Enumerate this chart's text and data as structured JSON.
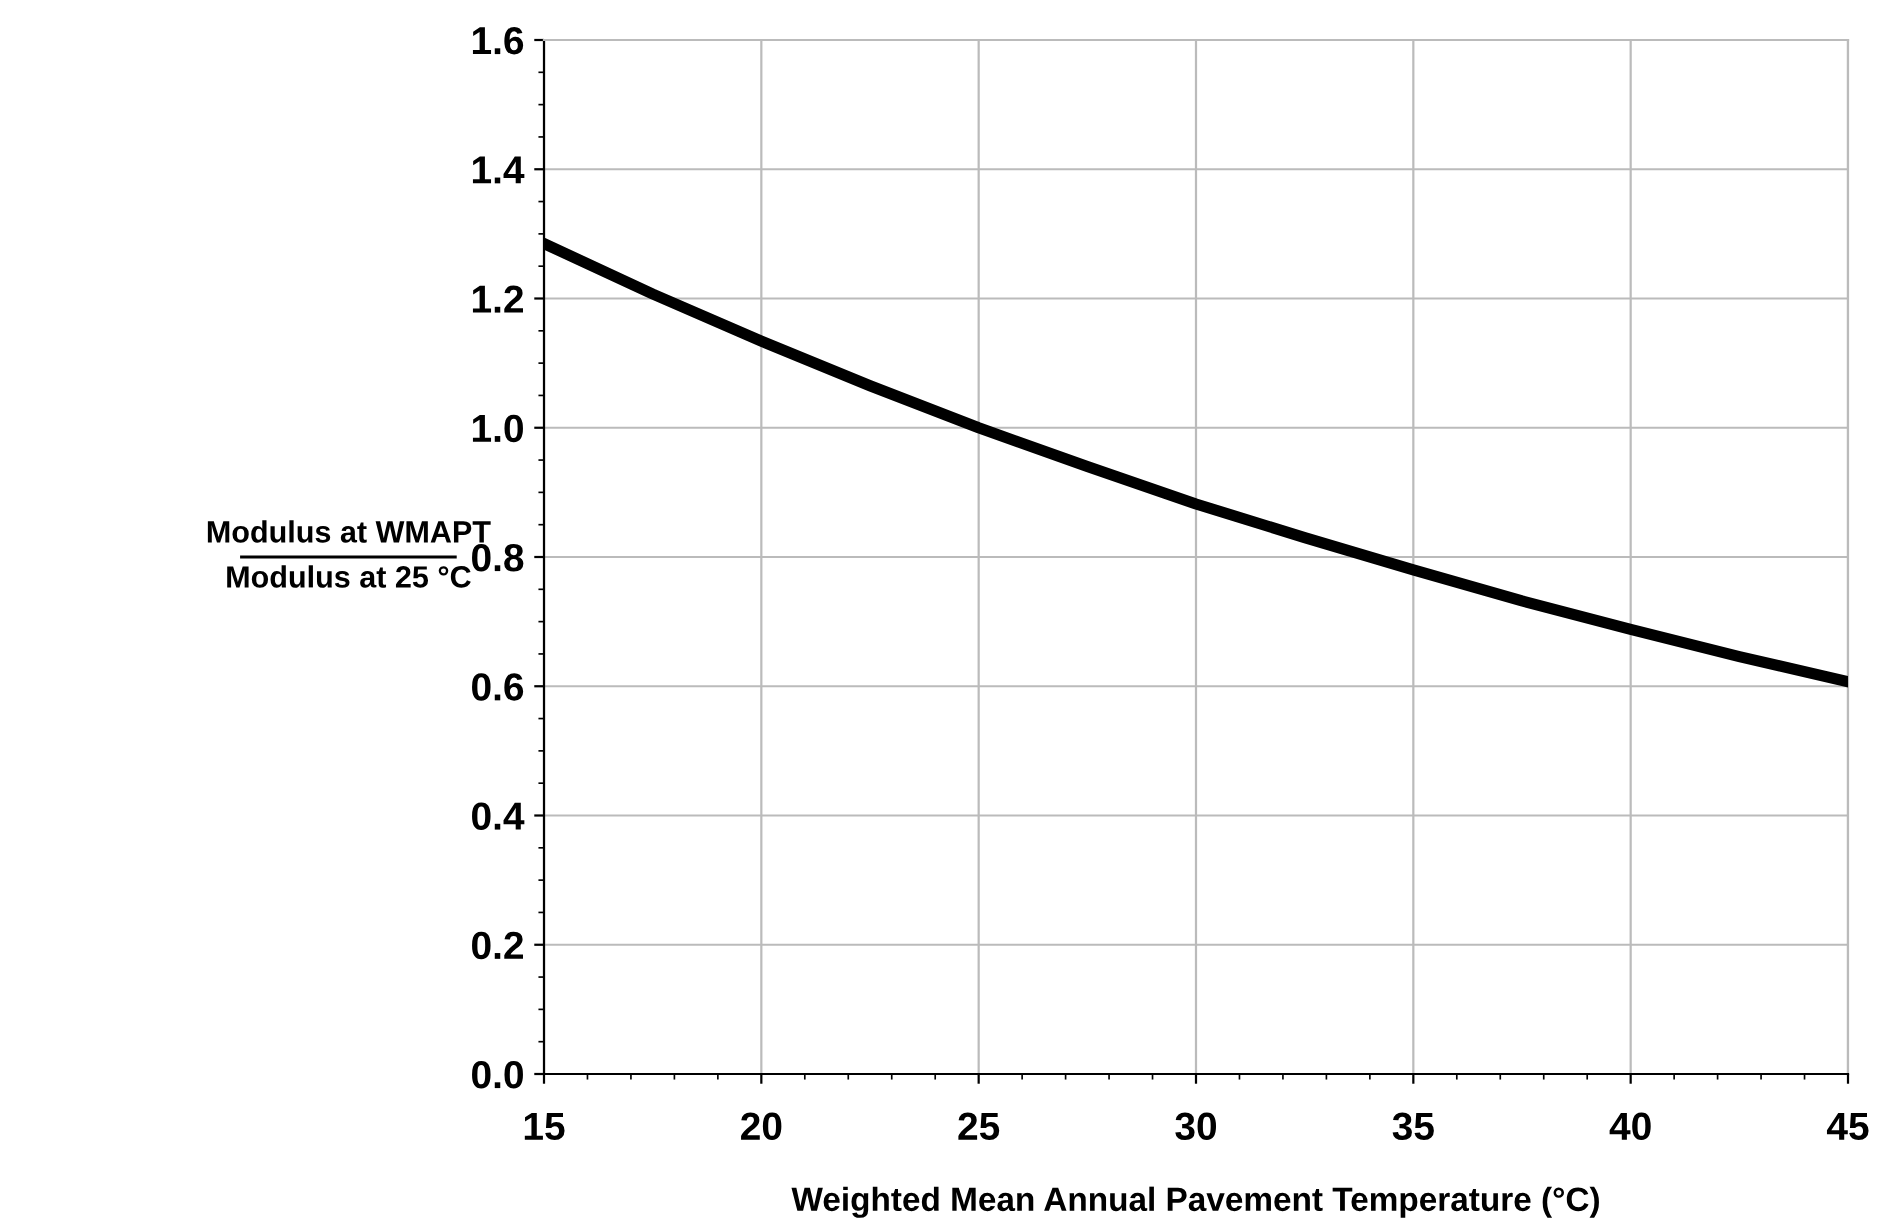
{
  "chart_data": {
    "type": "line",
    "xlabel": "Weighted Mean Annual Pavement Temperature (°C)",
    "ylabel": "Modulus at WMAPT\nModulus at 25 °C",
    "x": [
      15,
      17.5,
      20,
      22.5,
      25,
      27.5,
      30,
      32.5,
      35,
      37.5,
      40,
      42.5,
      45
    ],
    "series": [
      {
        "color": "#000000",
        "values": [
          1.285,
          1.207,
          1.134,
          1.065,
          1.0,
          0.94,
          0.882,
          0.83,
          0.78,
          0.732,
          0.688,
          0.646,
          0.607
        ]
      }
    ],
    "xlim": [
      15,
      45
    ],
    "xticks": [
      15,
      20,
      25,
      30,
      35,
      40,
      45
    ],
    "ylim": [
      0,
      1.6
    ],
    "yticks": [
      {
        "value": 0,
        "label": "0.0"
      },
      {
        "value": 0.2,
        "label": "0.2"
      },
      {
        "value": 0.4,
        "label": "0.4"
      },
      {
        "value": 0.6,
        "label": "0.6"
      },
      {
        "value": 0.8,
        "label": "0.8"
      },
      {
        "value": 1.0,
        "label": "1.0"
      },
      {
        "value": 1.2,
        "label": "1.2"
      },
      {
        "value": 1.4,
        "label": "1.4"
      },
      {
        "value": 1.6,
        "label": "1.6"
      }
    ],
    "grid": true,
    "legend": false,
    "marker": "none",
    "line_style": "solid"
  }
}
